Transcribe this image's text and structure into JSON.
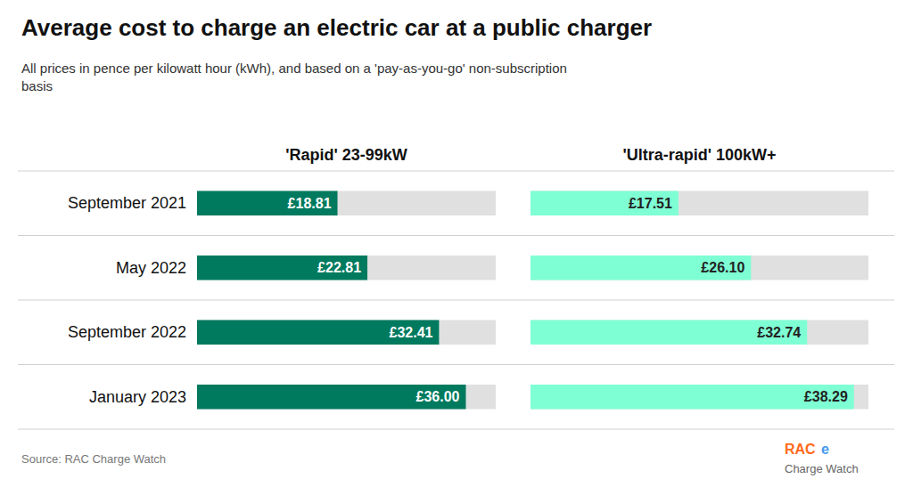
{
  "chart_data": {
    "type": "bar",
    "orientation": "horizontal",
    "title": "Average cost to charge an electric car at a public charger",
    "subtitle": "All prices in pence per kilowatt hour (kWh), and based on a 'pay-as-you-go' non-subscription\nbasis",
    "annotations": [
      "Source: RAC Charge Watch",
      "RAC",
      "e",
      "Charge Watch"
    ],
    "categories": [
      "September 2021",
      "May 2022",
      "September 2022",
      "January 2023"
    ],
    "series": [
      {
        "name": "'Rapid' 23-99kW",
        "color": "#007A5E",
        "values": [
          18.81,
          22.81,
          32.41,
          36.0
        ],
        "value_labels": [
          "£18.81",
          "£22.81",
          "£32.41",
          "£36.00"
        ]
      },
      {
        "name": "'Ultra-rapid' 100kW+",
        "color": "#7FFFD4",
        "values": [
          17.51,
          26.1,
          32.74,
          38.29
        ],
        "value_labels": [
          "£17.51",
          "£26.10",
          "£32.74",
          "£38.29"
        ]
      }
    ],
    "xlim": [
      0,
      40
    ],
    "tick_labels": false,
    "data_labels": true,
    "grid": false
  }
}
